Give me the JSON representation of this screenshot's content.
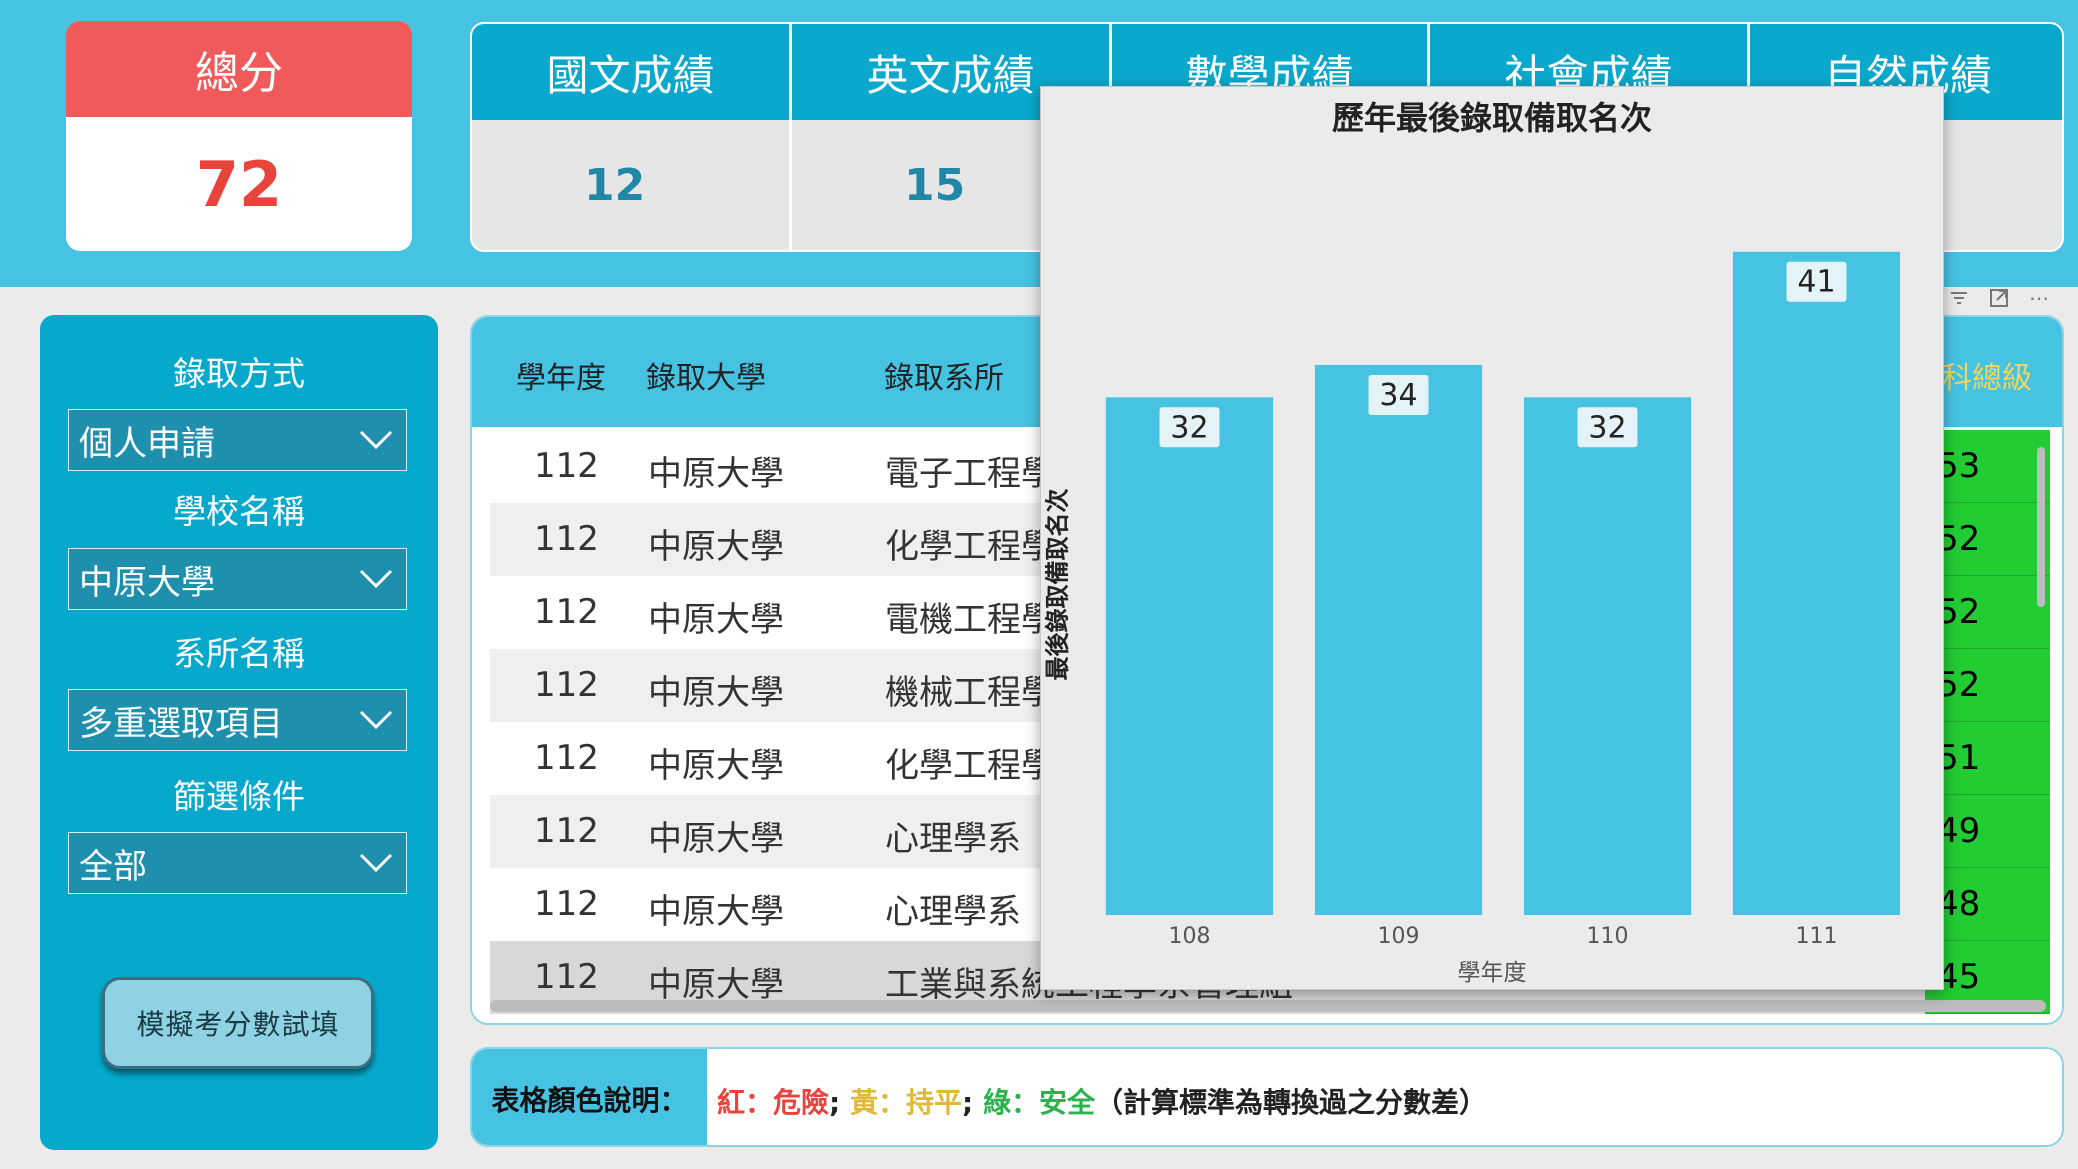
{
  "total": {
    "label": "總分",
    "value": "72"
  },
  "subjects": [
    {
      "label": "國文成績",
      "value": "12"
    },
    {
      "label": "英文成績",
      "value": "15"
    },
    {
      "label": "數學成績",
      "value": ""
    },
    {
      "label": "社會成績",
      "value": ""
    },
    {
      "label": "自然成績",
      "value": ""
    }
  ],
  "filters": {
    "method_label": "錄取方式",
    "method_value": "個人申請",
    "school_label": "學校名稱",
    "school_value": "中原大學",
    "dept_label": "系所名稱",
    "dept_value": "多重選取項目",
    "cond_label": "篩選條件",
    "cond_value": "全部",
    "simulate_button": "模擬考分數試填"
  },
  "table": {
    "headers": {
      "year": "學年度",
      "university": "錄取大學",
      "department": "錄取系所",
      "rank_total": "科總級"
    },
    "rows": [
      {
        "year": "112",
        "university": "中原大學",
        "department": "電子工程學",
        "rank": "53"
      },
      {
        "year": "112",
        "university": "中原大學",
        "department": "化學工程學",
        "rank": "52"
      },
      {
        "year": "112",
        "university": "中原大學",
        "department": "電機工程學",
        "rank": "52"
      },
      {
        "year": "112",
        "university": "中原大學",
        "department": "機械工程學",
        "rank": "52"
      },
      {
        "year": "112",
        "university": "中原大學",
        "department": "化學工程學",
        "rank": "51"
      },
      {
        "year": "112",
        "university": "中原大學",
        "department": "心理學系",
        "rank": "49"
      },
      {
        "year": "112",
        "university": "中原大學",
        "department": "心理學系",
        "rank": "48"
      },
      {
        "year": "112",
        "university": "中原大學",
        "department": "工業與系統工程學系管理組",
        "rank": "45"
      }
    ]
  },
  "legend": {
    "title": "表格顏色說明：",
    "red": "紅：危險",
    "sep1": "; ",
    "yellow": "黃：持平",
    "sep2": "; ",
    "green": "綠：安全",
    "note": "（計算標準為轉換過之分數差）",
    "colors": {
      "red": "#e8443c",
      "yellow": "#e0b83a",
      "green": "#2bb24c"
    }
  },
  "chart_data": {
    "type": "bar",
    "title": "歷年最後錄取備取名次",
    "xlabel": "學年度",
    "ylabel": "最後錄取備取名次",
    "categories": [
      "108",
      "109",
      "110",
      "111"
    ],
    "values": [
      32,
      34,
      32,
      41
    ],
    "ylim": [
      0,
      45
    ],
    "bar_color": "#46c3e3",
    "grid": false,
    "legend": "none"
  },
  "toolbar": {
    "filter_icon": "filter-icon",
    "focus_icon": "focus-mode-icon",
    "more_icon": "more-options-icon"
  }
}
